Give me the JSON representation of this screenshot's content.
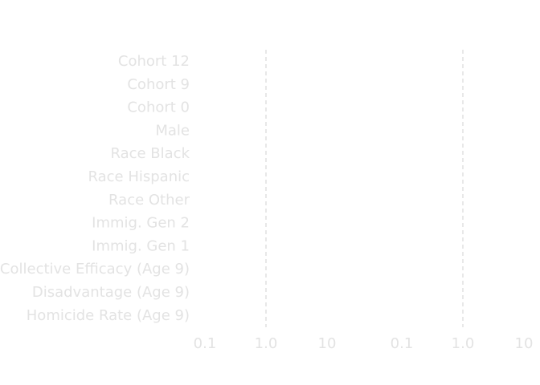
{
  "chart_data": {
    "type": "scatter",
    "categories": [
      "Cohort 12",
      "Cohort 9",
      "Cohort 0",
      "Male",
      "Race Black",
      "Race Hispanic",
      "Race Other",
      "Immig. Gen 2",
      "Immig. Gen 1",
      "Collective Efficacy (Age 9)",
      "Disadvantage (Age 9)",
      "Homicide Rate (Age 9)"
    ],
    "x_scale": "log",
    "panels": [
      {
        "xlim": [
          0.1,
          10
        ],
        "x_ticks": [
          "0.1",
          "1.0",
          "10"
        ],
        "reference_line": 1.0,
        "series": []
      },
      {
        "xlim": [
          0.1,
          10
        ],
        "x_ticks": [
          "0.1",
          "1.0",
          "10"
        ],
        "reference_line": 1.0,
        "series": []
      }
    ]
  }
}
